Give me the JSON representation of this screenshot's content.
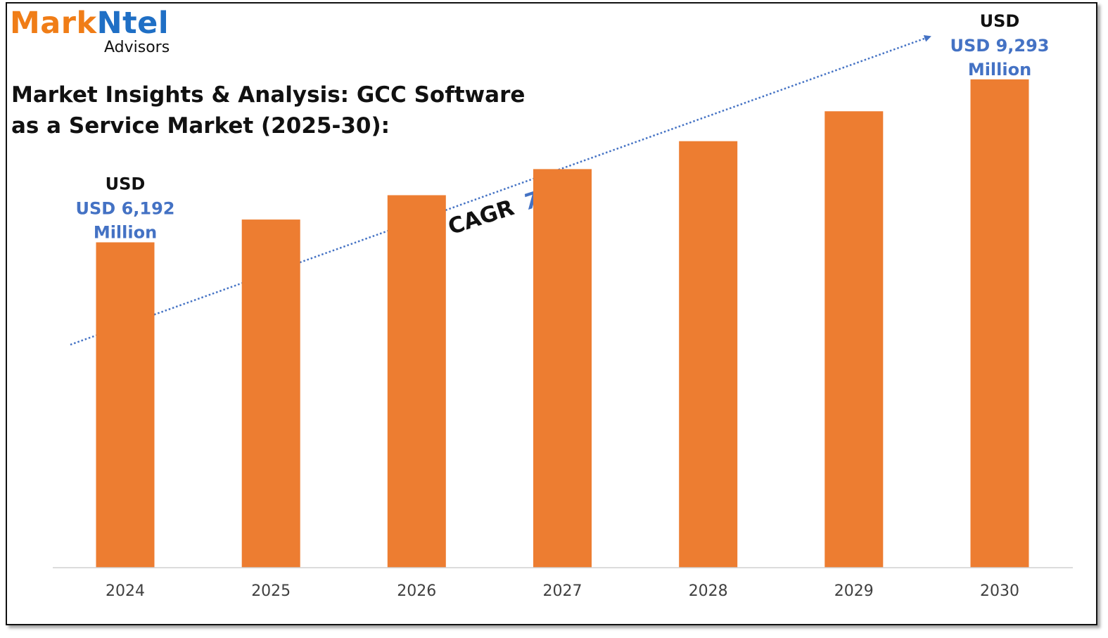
{
  "brand": {
    "name_part1": "Mark",
    "name_part2": "Ntel",
    "tagline": "Advisors"
  },
  "title": "Market Insights & Analysis: GCC Software as a Service Market (2025-30):",
  "colors": {
    "bar": "#ed7d31",
    "accent_blue": "#4472c4",
    "logo_orange": "#f07d17",
    "logo_blue": "#1f6fc5"
  },
  "chart_data": {
    "type": "bar",
    "categories": [
      "2024",
      "2025",
      "2026",
      "2027",
      "2028",
      "2029",
      "2030"
    ],
    "values": [
      6192,
      6625,
      7089,
      7585,
      8116,
      8685,
      9293
    ],
    "value_unit": "USD Million",
    "ylim": [
      0,
      10000
    ],
    "grid": false,
    "trend_arrow": {
      "label_prefix": "CAGR",
      "label_value": "7%"
    },
    "annotations": [
      {
        "category": "2024",
        "line1": "USD",
        "line2": "USD 6,192",
        "line3": "Million"
      },
      {
        "category": "2030",
        "line1": "USD",
        "line2": "USD 9,293",
        "line3": "Million"
      }
    ]
  }
}
